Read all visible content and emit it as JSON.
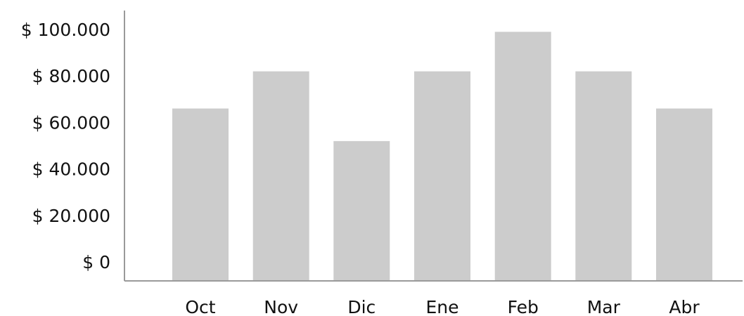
{
  "chart_data": {
    "type": "bar",
    "title": "",
    "xlabel": "",
    "ylabel": "",
    "categories": [
      "Oct",
      "Nov",
      "Dic",
      "Ene",
      "Feb",
      "Mar",
      "Abr"
    ],
    "values": [
      66000,
      82000,
      52000,
      82000,
      99000,
      82000,
      66000
    ],
    "ylim": [
      0,
      100000
    ],
    "yticks": [
      0,
      20000,
      40000,
      60000,
      80000,
      100000
    ],
    "ytick_labels": [
      "$ 0",
      "$ 20.000",
      "$ 40.000",
      "$ 60.000",
      "$ 80.000",
      "$ 100.000"
    ],
    "grid": false,
    "legend": "none",
    "colors": {
      "bar": "#cccccc",
      "axis": "#9a9a9a",
      "text": "#111111"
    }
  }
}
